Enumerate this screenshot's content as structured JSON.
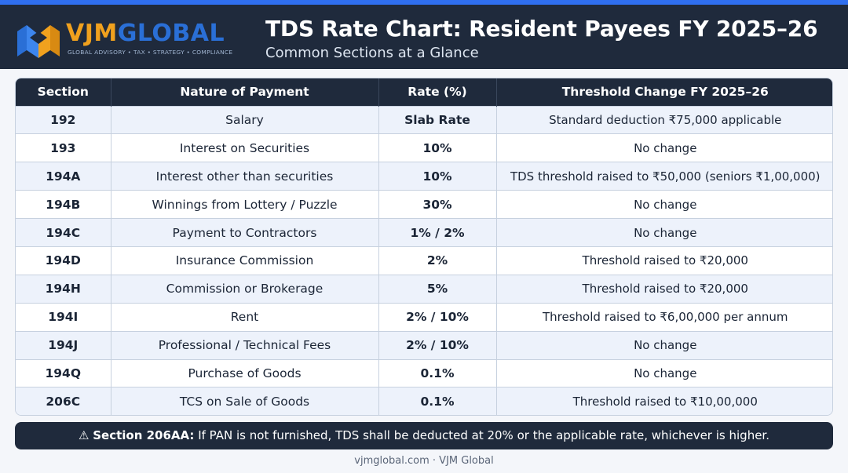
{
  "brand": {
    "word_part1": "VJM",
    "word_part2": "GLOBAL",
    "tagline": "GLOBAL ADVISORY • TAX • STRATEGY • COMPLIANCE",
    "colors": {
      "orange": "#f0a11e",
      "blue": "#2a6fd6",
      "navy": "#1f2a3c"
    }
  },
  "header": {
    "title": "TDS Rate Chart: Resident Payees FY 2025–26",
    "subtitle": "Common Sections at a Glance"
  },
  "table": {
    "columns": [
      "Section",
      "Nature of Payment",
      "Rate (%)",
      "Threshold Change FY 2025–26"
    ],
    "rows": [
      {
        "section": "192",
        "nature": "Salary",
        "rate": "Slab Rate",
        "threshold": "Standard deduction ₹75,000 applicable"
      },
      {
        "section": "193",
        "nature": "Interest on Securities",
        "rate": "10%",
        "threshold": "No change"
      },
      {
        "section": "194A",
        "nature": "Interest other than securities",
        "rate": "10%",
        "threshold": "TDS threshold raised to ₹50,000 (seniors ₹1,00,000)"
      },
      {
        "section": "194B",
        "nature": "Winnings from Lottery / Puzzle",
        "rate": "30%",
        "threshold": "No change"
      },
      {
        "section": "194C",
        "nature": "Payment to Contractors",
        "rate": "1% / 2%",
        "threshold": "No change"
      },
      {
        "section": "194D",
        "nature": "Insurance Commission",
        "rate": "2%",
        "threshold": "Threshold raised to ₹20,000"
      },
      {
        "section": "194H",
        "nature": "Commission or Brokerage",
        "rate": "5%",
        "threshold": "Threshold raised to ₹20,000"
      },
      {
        "section": "194I",
        "nature": "Rent",
        "rate": "2% / 10%",
        "threshold": "Threshold raised to ₹6,00,000 per annum"
      },
      {
        "section": "194J",
        "nature": "Professional / Technical Fees",
        "rate": "2% / 10%",
        "threshold": "No change"
      },
      {
        "section": "194Q",
        "nature": "Purchase of Goods",
        "rate": "0.1%",
        "threshold": "No change"
      },
      {
        "section": "206C",
        "nature": "TCS on Sale of Goods",
        "rate": "0.1%",
        "threshold": "Threshold raised to ₹10,00,000"
      }
    ]
  },
  "note": {
    "icon": "warning-icon",
    "label": "Section 206AA:",
    "text": " If PAN is not furnished, TDS shall be deducted at 20% or the applicable rate, whichever is higher."
  },
  "footer": {
    "text": "vjmglobal.com · VJM Global"
  }
}
